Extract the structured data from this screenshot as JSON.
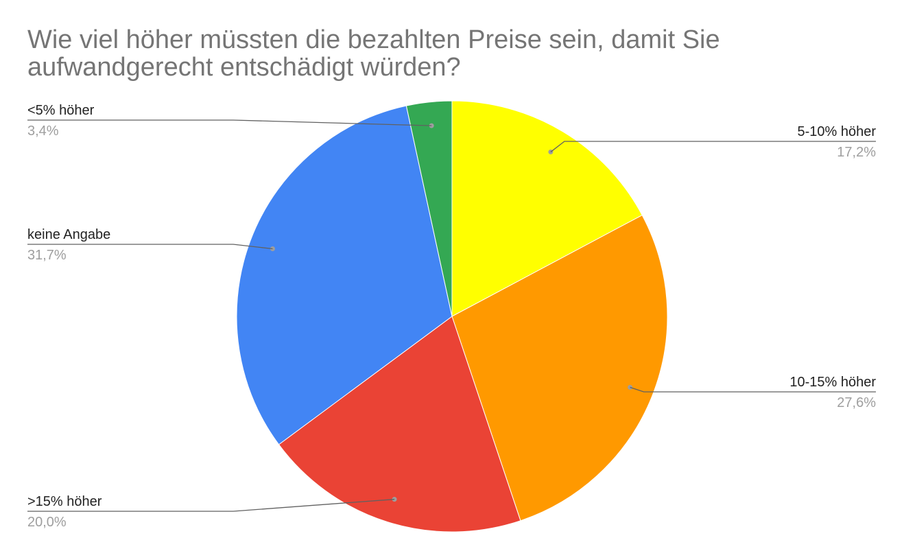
{
  "chart_data": {
    "type": "pie",
    "title": "Wie viel höher müssten die bezahlten Preise sein, damit Sie aufwandgerecht entschädigt würden?",
    "legend": "labels beside slices",
    "slices": [
      {
        "label": "5-10% höher",
        "value": 17.2,
        "value_label": "17,2%",
        "color": "#ffff00"
      },
      {
        "label": "10-15% höher",
        "value": 27.6,
        "value_label": "27,6%",
        "color": "#ff9900"
      },
      {
        "label": ">15% höher",
        "value": 20.0,
        "value_label": "20,0%",
        "color": "#ea4335"
      },
      {
        "label": "keine Angabe",
        "value": 31.7,
        "value_label": "31,7%",
        "color": "#4285f4"
      },
      {
        "label": "<5% höher",
        "value": 3.4,
        "value_label": "3,4%",
        "color": "#34a853"
      }
    ]
  }
}
